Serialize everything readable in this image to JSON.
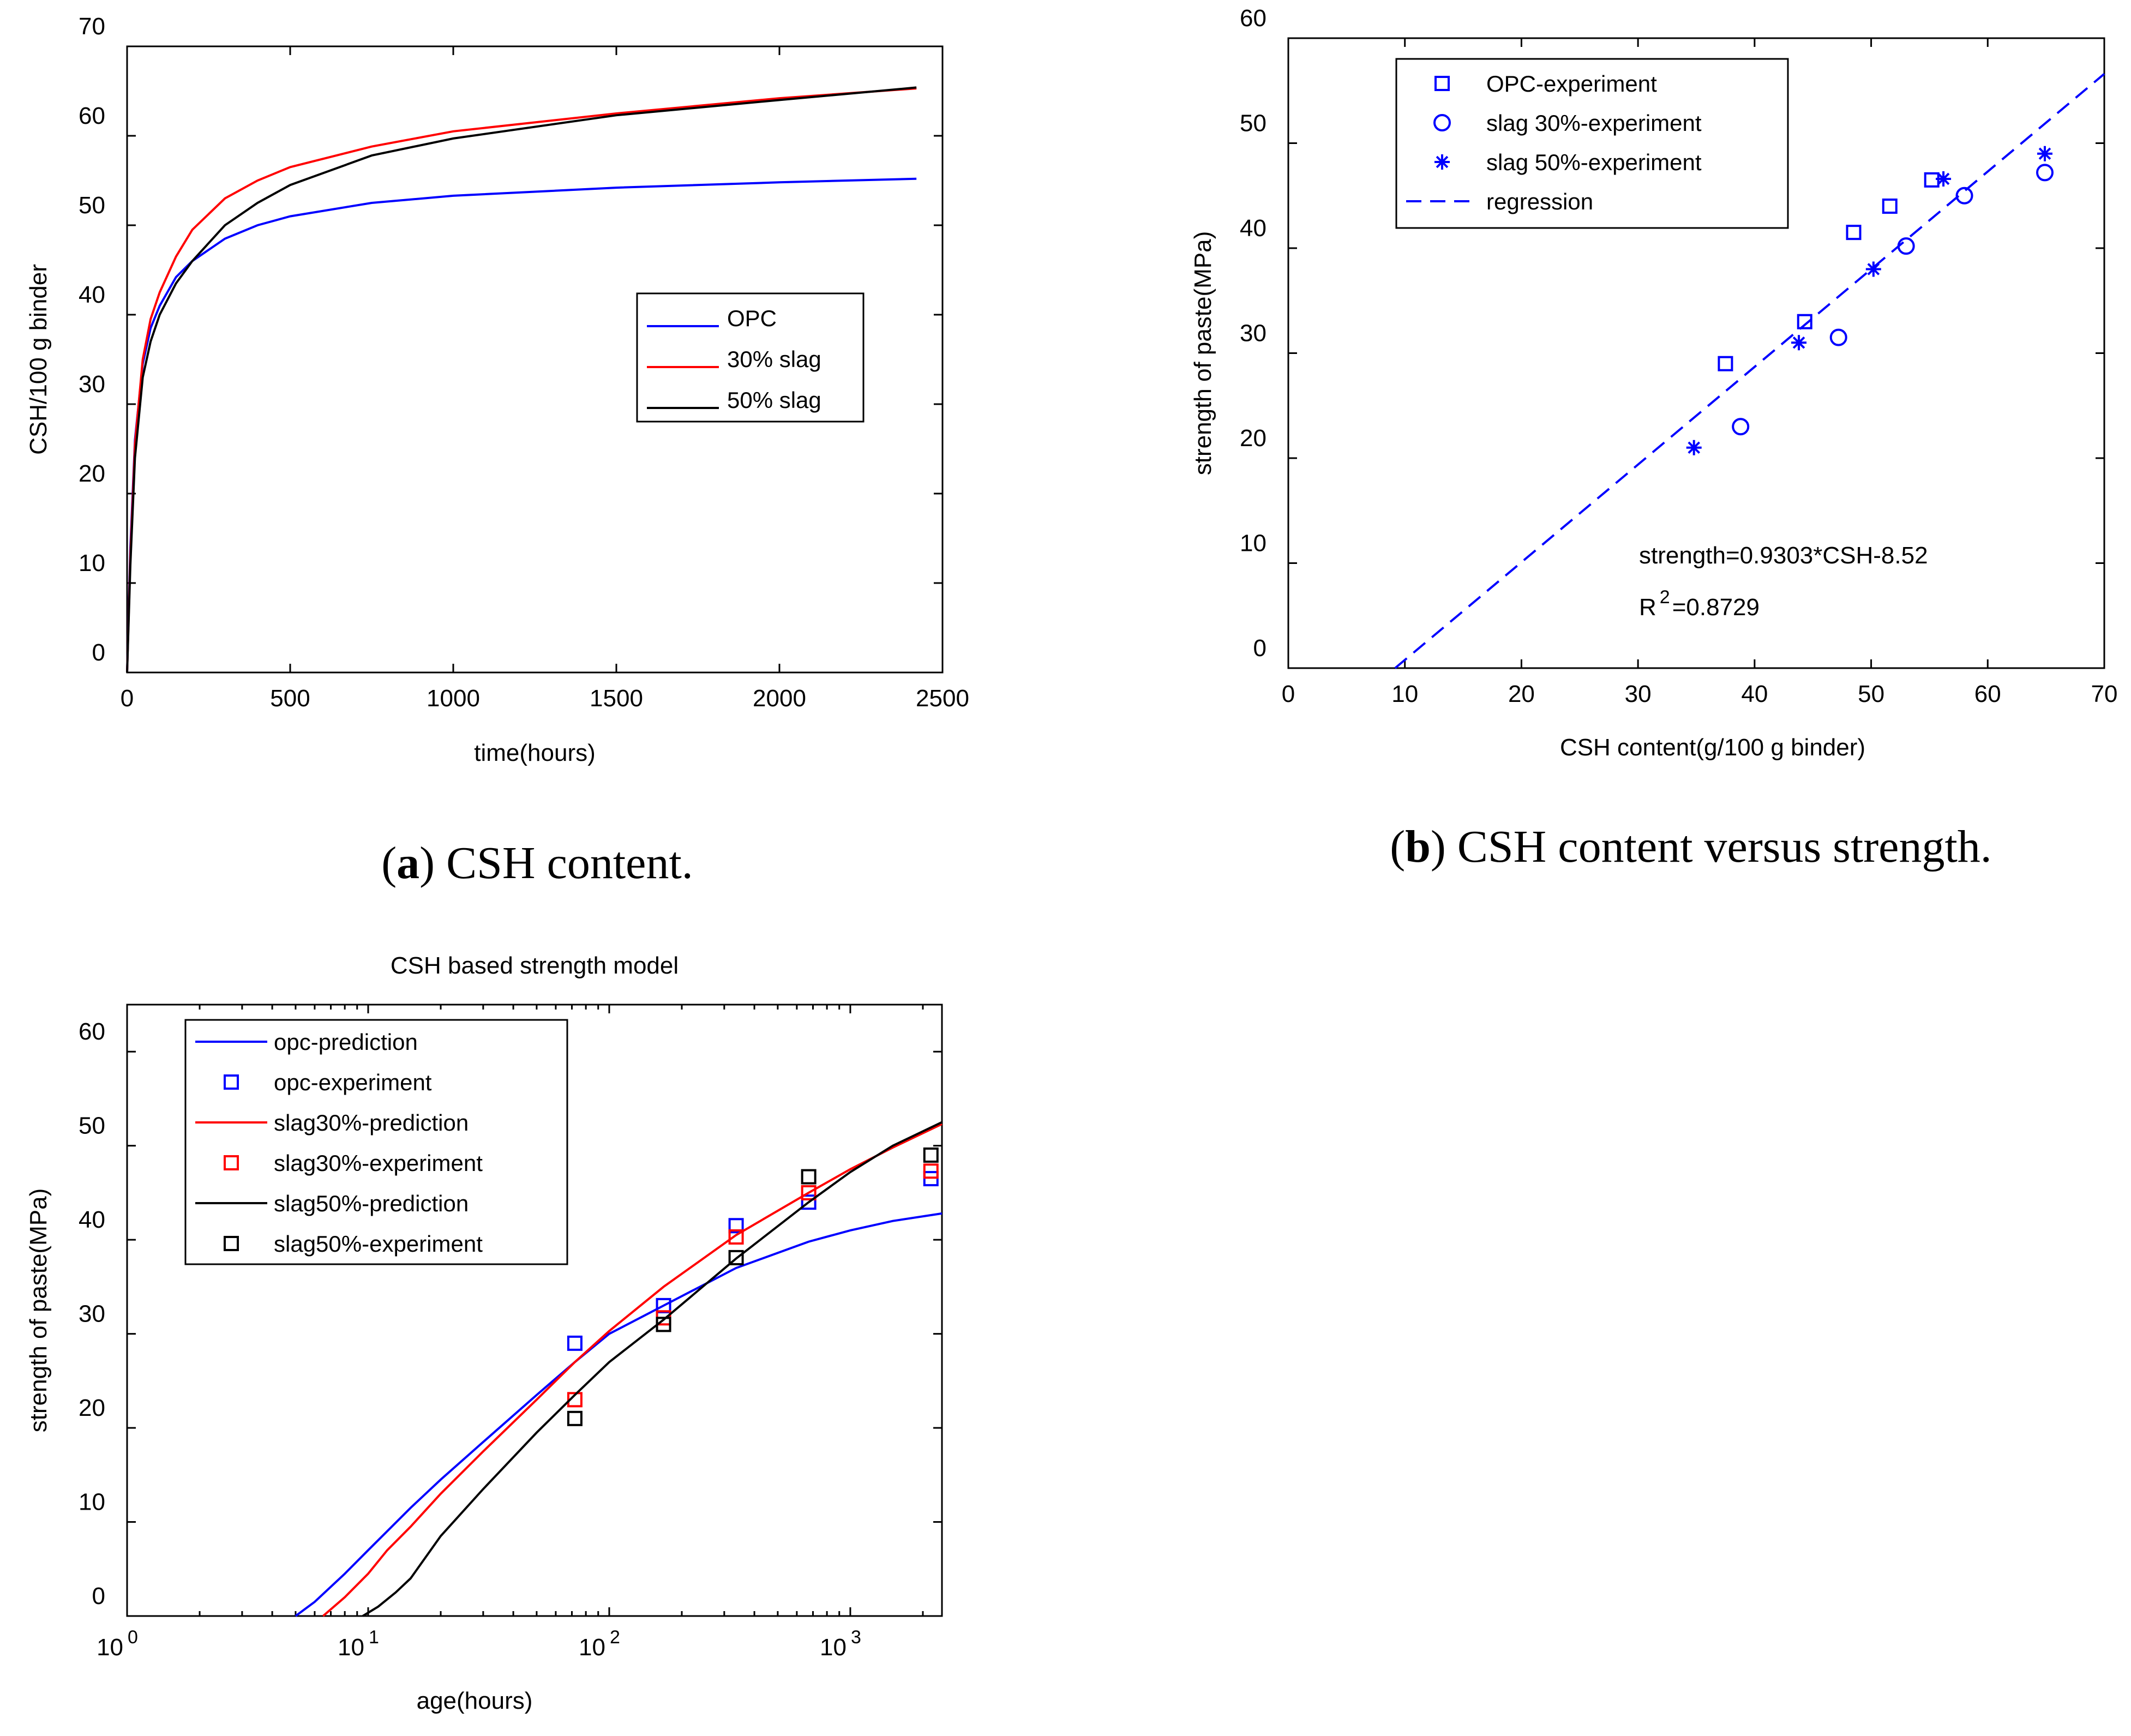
{
  "colors": {
    "blue": "#0000ff",
    "red": "#ff0000",
    "black": "#000000"
  },
  "captions": {
    "a_label": "a",
    "a_text": "CSH content.",
    "b_label": "b",
    "b_text": "CSH content versus strength."
  },
  "chart_data": [
    {
      "id": "a",
      "type": "line",
      "title": "",
      "xlabel": "time(hours)",
      "ylabel": "CSH/100 g binder",
      "xlim": [
        0,
        2500
      ],
      "ylim": [
        0,
        70
      ],
      "xticks": [
        "0",
        "500",
        "1000",
        "1500",
        "2000",
        "2500"
      ],
      "yticks": [
        "0",
        "10",
        "20",
        "30",
        "40",
        "50",
        "60",
        "70"
      ],
      "legend_position": "center-right",
      "series": [
        {
          "name": "OPC",
          "color": "#0000ff",
          "x": [
            0,
            10,
            24,
            48,
            72,
            100,
            150,
            200,
            300,
            400,
            500,
            750,
            1000,
            1500,
            2000,
            2420
          ],
          "y": [
            0,
            14,
            26,
            34.5,
            38.5,
            41,
            44.2,
            46,
            48.5,
            50,
            51,
            52.5,
            53.3,
            54.2,
            54.8,
            55.2
          ]
        },
        {
          "name": "30% slag",
          "color": "#ff0000",
          "x": [
            0,
            10,
            24,
            48,
            72,
            100,
            150,
            200,
            300,
            400,
            500,
            750,
            1000,
            1500,
            2000,
            2420
          ],
          "y": [
            0,
            13,
            25.5,
            35,
            39.5,
            42.5,
            46.5,
            49.5,
            53,
            55,
            56.5,
            58.8,
            60.5,
            62.5,
            64.2,
            65.3
          ]
        },
        {
          "name": "50% slag",
          "color": "#000000",
          "x": [
            0,
            10,
            24,
            48,
            72,
            100,
            150,
            200,
            300,
            400,
            500,
            750,
            1000,
            1500,
            2000,
            2420
          ],
          "y": [
            0,
            12,
            24,
            33,
            37,
            40,
            43.5,
            46,
            50,
            52.5,
            54.5,
            57.8,
            59.7,
            62.3,
            64,
            65.4
          ]
        }
      ]
    },
    {
      "id": "b",
      "type": "scatter",
      "title": "",
      "xlabel": "CSH content(g/100 g binder)",
      "ylabel": "strength of paste(MPa)",
      "xlim": [
        0,
        70
      ],
      "ylim": [
        0,
        60
      ],
      "xticks": [
        "0",
        "10",
        "20",
        "30",
        "40",
        "50",
        "60",
        "70"
      ],
      "yticks": [
        "0",
        "10",
        "20",
        "30",
        "40",
        "50",
        "60"
      ],
      "legend_position": "top-left",
      "series": [
        {
          "name": "OPC-experiment",
          "marker": "square",
          "color": "#0000ff",
          "x": [
            37.5,
            44.3,
            48.5,
            51.6,
            55.2
          ],
          "y": [
            29,
            33,
            41.5,
            44,
            46.5
          ]
        },
        {
          "name": "slag 30%-experiment",
          "marker": "circle",
          "color": "#0000ff",
          "x": [
            38.8,
            47.2,
            53,
            58,
            64.9
          ],
          "y": [
            23,
            31.5,
            40.2,
            45,
            47.2
          ]
        },
        {
          "name": "slag 50%-experiment",
          "marker": "star",
          "color": "#0000ff",
          "x": [
            34.8,
            43.8,
            50.2,
            56.2,
            64.9
          ],
          "y": [
            21,
            31,
            38,
            46.6,
            49
          ]
        },
        {
          "name": "regression",
          "type": "dashed-line",
          "color": "#0000ff",
          "slope": 0.9303,
          "intercept": -8.52,
          "x": [
            9.16,
            70
          ],
          "y": [
            0,
            56.6
          ]
        }
      ],
      "annotations": {
        "equation": "strength=0.9303*CSH-8.52",
        "r2_prefix": "R",
        "r2_sup": "2",
        "r2_value": "=0.8729"
      }
    },
    {
      "id": "c",
      "type": "line",
      "title": "CSH based strength model",
      "xlabel": "age(hours)",
      "ylabel": "strength of paste(MPa)",
      "xscale": "log",
      "xlim": [
        1,
        2400
      ],
      "ylim": [
        0,
        65
      ],
      "xticks": [
        {
          "base": "10",
          "exp": "0",
          "value": 1
        },
        {
          "base": "10",
          "exp": "1",
          "value": 10
        },
        {
          "base": "10",
          "exp": "2",
          "value": 100
        },
        {
          "base": "10",
          "exp": "3",
          "value": 1000
        }
      ],
      "yticks": [
        "0",
        "10",
        "20",
        "30",
        "40",
        "50",
        "60"
      ],
      "legend_position": "top-left",
      "series": [
        {
          "name": "opc-prediction",
          "kind": "line",
          "color": "#0000ff",
          "x": [
            5,
            6,
            8,
            10,
            15,
            20,
            30,
            50,
            72,
            100,
            168,
            336,
            672,
            1000,
            1500,
            2400
          ],
          "y": [
            0,
            1.5,
            4.5,
            7,
            11.5,
            14.5,
            18.5,
            23.5,
            27,
            30,
            33,
            37,
            39.8,
            41,
            42,
            42.8
          ]
        },
        {
          "name": "opc-experiment",
          "kind": "square",
          "color": "#0000ff",
          "x": [
            72,
            168,
            336,
            672,
            2160
          ],
          "y": [
            29,
            33,
            41.5,
            44,
            46.5
          ]
        },
        {
          "name": "slag30%-prediction",
          "kind": "line",
          "color": "#ff0000",
          "x": [
            6.5,
            8,
            10,
            12,
            15,
            20,
            30,
            50,
            72,
            100,
            168,
            336,
            672,
            1000,
            1500,
            2400
          ],
          "y": [
            0,
            2,
            4.5,
            7,
            9.5,
            13,
            17.5,
            23,
            27,
            30.3,
            35,
            40.5,
            45,
            47.5,
            49.8,
            52.3
          ]
        },
        {
          "name": "slag30%-experiment",
          "kind": "square",
          "color": "#ff0000",
          "x": [
            72,
            168,
            336,
            672,
            2160
          ],
          "y": [
            23,
            31.7,
            40.3,
            45,
            47.3
          ]
        },
        {
          "name": "slag50%-prediction",
          "kind": "line",
          "color": "#000000",
          "x": [
            9.5,
            11,
            13,
            15,
            20,
            30,
            50,
            72,
            100,
            168,
            336,
            672,
            1000,
            1500,
            2400
          ],
          "y": [
            0,
            1,
            2.5,
            4,
            8.5,
            13.5,
            19.5,
            23.5,
            27,
            31.5,
            38,
            44,
            47.2,
            50,
            52.5
          ]
        },
        {
          "name": "slag50%-experiment",
          "kind": "square",
          "color": "#000000",
          "x": [
            72,
            168,
            336,
            672,
            2160
          ],
          "y": [
            21,
            31,
            38.1,
            46.7,
            49
          ]
        }
      ]
    }
  ]
}
